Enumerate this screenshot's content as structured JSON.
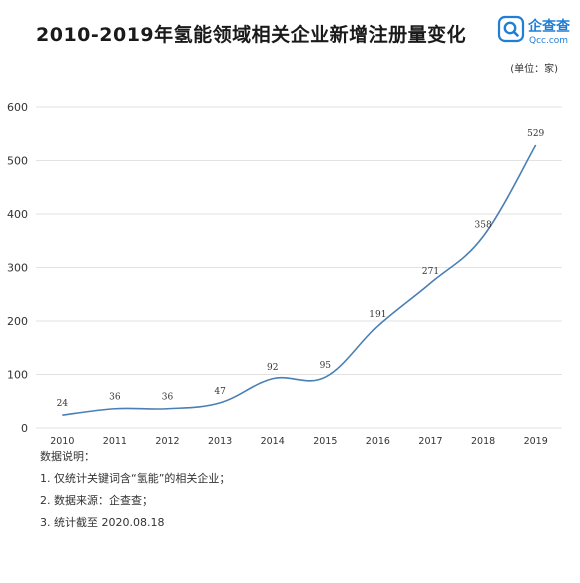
{
  "header": {
    "title": "2010-2019年氢能领域相关企业新增注册量变化",
    "unit": "(单位：家)"
  },
  "logo": {
    "name": "企查查",
    "domain": "Qcc.com",
    "icon": "qcc-logo-icon"
  },
  "notes": {
    "heading": "数据说明：",
    "items": [
      "1. 仅统计关键词含“氢能”的相关企业；",
      "2. 数据来源：企查查；",
      "3. 统计截至 2020.08.18"
    ]
  },
  "chart_data": {
    "type": "line",
    "title": "2010-2019年氢能领域相关企业新增注册量变化",
    "categories": [
      "2010",
      "2011",
      "2012",
      "2013",
      "2014",
      "2015",
      "2016",
      "2017",
      "2018",
      "2019"
    ],
    "values": [
      24,
      36,
      36,
      47,
      92,
      95,
      191,
      271,
      358,
      529
    ],
    "ylim": [
      0,
      600
    ],
    "yticks": [
      0,
      100,
      200,
      300,
      400,
      500,
      600
    ],
    "grid": true,
    "smooth": true,
    "line_color": "#4a7fb5",
    "grid_color": "#e2e2e2",
    "data_labels": true
  }
}
